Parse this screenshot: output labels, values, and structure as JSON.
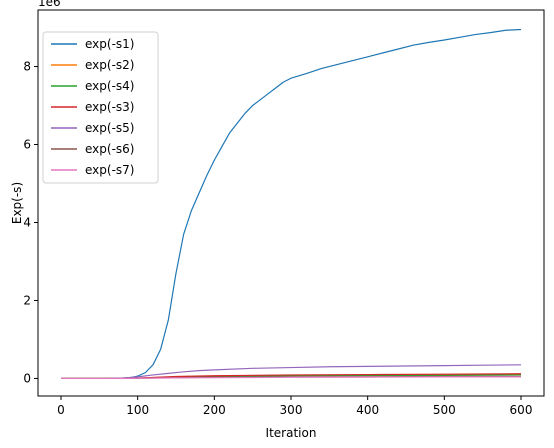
{
  "chart_data": {
    "type": "line",
    "title": "",
    "xlabel": "Iteration",
    "ylabel": "Exp(-s)",
    "y_offset_label": "1e6",
    "xlim": [
      -30,
      630
    ],
    "ylim": [
      -0.45,
      9.45
    ],
    "y_scale_multiplier": 1000000,
    "xticks": [
      0,
      100,
      200,
      300,
      400,
      500,
      600
    ],
    "yticks": [
      0,
      2,
      4,
      6,
      8
    ],
    "grid": false,
    "legend_position": "upper-left",
    "series": [
      {
        "name": "exp(-s1)",
        "color": "#1f77b4",
        "x": [
          0,
          50,
          80,
          90,
          100,
          110,
          120,
          130,
          140,
          150,
          160,
          170,
          180,
          190,
          200,
          210,
          220,
          230,
          240,
          250,
          260,
          270,
          280,
          290,
          300,
          320,
          340,
          360,
          380,
          400,
          420,
          440,
          460,
          480,
          500,
          520,
          540,
          560,
          580,
          600
        ],
        "values": [
          0.0,
          0.0,
          0.01,
          0.02,
          0.06,
          0.15,
          0.35,
          0.75,
          1.5,
          2.7,
          3.7,
          4.3,
          4.75,
          5.2,
          5.6,
          5.95,
          6.3,
          6.55,
          6.8,
          7.0,
          7.15,
          7.3,
          7.45,
          7.6,
          7.7,
          7.82,
          7.95,
          8.05,
          8.15,
          8.25,
          8.35,
          8.45,
          8.55,
          8.62,
          8.68,
          8.75,
          8.82,
          8.87,
          8.93,
          8.95
        ]
      },
      {
        "name": "exp(-s2)",
        "color": "#ff7f0e",
        "x": [
          0,
          80,
          100,
          150,
          200,
          300,
          400,
          500,
          600
        ],
        "values": [
          0.0,
          0.0,
          0.01,
          0.04,
          0.06,
          0.08,
          0.09,
          0.1,
          0.1
        ]
      },
      {
        "name": "exp(-s4)",
        "color": "#2ca02c",
        "x": [
          0,
          80,
          100,
          150,
          200,
          300,
          400,
          500,
          600
        ],
        "values": [
          0.0,
          0.0,
          0.01,
          0.03,
          0.05,
          0.07,
          0.08,
          0.08,
          0.09
        ]
      },
      {
        "name": "exp(-s3)",
        "color": "#d62728",
        "x": [
          0,
          80,
          100,
          150,
          200,
          300,
          400,
          500,
          600
        ],
        "values": [
          0.0,
          0.0,
          0.01,
          0.05,
          0.07,
          0.09,
          0.1,
          0.11,
          0.12
        ]
      },
      {
        "name": "exp(-s5)",
        "color": "#9467bd",
        "x": [
          0,
          60,
          80,
          100,
          120,
          140,
          160,
          180,
          200,
          250,
          300,
          350,
          400,
          450,
          500,
          550,
          600
        ],
        "values": [
          0.0,
          0.0,
          0.01,
          0.04,
          0.09,
          0.13,
          0.17,
          0.2,
          0.22,
          0.26,
          0.28,
          0.3,
          0.31,
          0.32,
          0.33,
          0.34,
          0.35
        ]
      },
      {
        "name": "exp(-s6)",
        "color": "#8c564b",
        "x": [
          0,
          80,
          100,
          150,
          200,
          300,
          400,
          500,
          600
        ],
        "values": [
          0.0,
          0.0,
          0.005,
          0.02,
          0.03,
          0.04,
          0.045,
          0.05,
          0.05
        ]
      },
      {
        "name": "exp(-s7)",
        "color": "#e377c2",
        "x": [
          0,
          80,
          100,
          150,
          200,
          300,
          400,
          500,
          600
        ],
        "values": [
          0.0,
          0.0,
          0.005,
          0.015,
          0.02,
          0.03,
          0.035,
          0.04,
          0.04
        ]
      }
    ]
  }
}
